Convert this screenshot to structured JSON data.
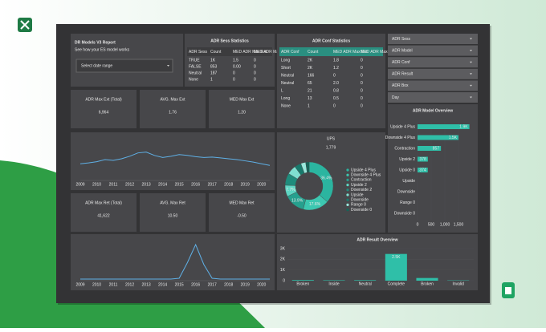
{
  "header": {
    "title": "DR Models V3 Report",
    "subtitle": "See how your ES model works",
    "date_range": "Select date range"
  },
  "sess_table": {
    "title": "ADR Sess Statistics",
    "columns": [
      "ADR Sess",
      "Count",
      "MED ADR Max Ext",
      "MED ADR Max Ret"
    ],
    "rows": [
      [
        "TRUE",
        "1K",
        "1.5",
        "0"
      ],
      [
        "FALSE",
        "853",
        "0.00",
        "0"
      ],
      [
        "Neutral",
        "187",
        "0",
        "0"
      ],
      [
        "None",
        "1",
        "0",
        "0"
      ]
    ]
  },
  "conf_table": {
    "title": "ADR Conf Statistics",
    "columns": [
      "ADR Conf",
      "Count",
      "MED ADR Max Ext",
      "MED ADR Max Ret"
    ],
    "rows": [
      [
        "Long",
        "2K",
        "1.8",
        "0"
      ],
      [
        "Short",
        "2K",
        "1.2",
        "0"
      ],
      [
        "Neutral",
        "166",
        "0",
        "0"
      ],
      [
        "Neutral",
        "65",
        "2.0",
        "0"
      ],
      [
        "L",
        "21",
        "0.8",
        "0"
      ],
      [
        "Long",
        "13",
        "0.5",
        "0"
      ],
      [
        "None",
        "1",
        "0",
        "0"
      ]
    ]
  },
  "filters": [
    "ADR Sess",
    "ADR Model",
    "ADR Conf",
    "ADR Result",
    "ADR Box",
    "Day"
  ],
  "cards": [
    {
      "label": "ADR Max Ext (Total)",
      "value": "6,964",
      "color": "#5fcfbd"
    },
    {
      "label": "AVG. Max Ext",
      "value": "1.76",
      "color": "#5fcfbd"
    },
    {
      "label": "MED Max Ext",
      "value": "1.20",
      "color": "#5fcfbd"
    },
    {
      "label": "ADR Max Ret (Total)",
      "value": "41,622",
      "color": "#5fcfbd"
    },
    {
      "label": "AVG. Max Ret",
      "value": "10.50",
      "color": "#5fcfbd"
    },
    {
      "label": "MED Max Ret",
      "value": "-0.50",
      "color": "#ef4b4b"
    }
  ],
  "line_charts": [
    {
      "type": "line",
      "color": "#5fb0e6",
      "ylim": [
        0,
        100
      ],
      "categories": [
        "2009",
        null,
        "2010",
        null,
        "2011",
        null,
        "2012",
        null,
        "2013",
        null,
        "2014",
        null,
        "2015",
        null,
        "2016",
        null,
        "2017",
        null,
        "2018",
        null,
        "2019",
        null,
        "2020",
        null
      ],
      "values": [
        40,
        42,
        45,
        50,
        48,
        52,
        58,
        66,
        68,
        60,
        55,
        58,
        62,
        60,
        57,
        55,
        56,
        54,
        52,
        50,
        47,
        44,
        40,
        36
      ]
    },
    {
      "type": "line",
      "color": "#5fb0e6",
      "ylim": [
        0,
        100
      ],
      "categories": [
        "2009",
        null,
        "2010",
        null,
        "2011",
        null,
        "2012",
        null,
        "2013",
        null,
        "2014",
        null,
        "2015",
        null,
        "2016",
        null,
        "2017",
        null,
        "2018",
        null,
        "2019",
        null,
        "2020",
        null
      ],
      "values": [
        4,
        4,
        4,
        4,
        4,
        4,
        4,
        4,
        4,
        4,
        4,
        4,
        6,
        45,
        90,
        40,
        6,
        4,
        4,
        4,
        4,
        4,
        4,
        4
      ]
    }
  ],
  "donut": {
    "type": "pie",
    "title": "UPS",
    "total": "1,779",
    "categories": [
      "Upside 4 Plus",
      "Downside 4 Plus",
      "Contraction",
      "Upside 2",
      "Downside 2",
      "Upside",
      "Downside",
      "Range 0",
      "Downside 0"
    ],
    "values": [
      36.4,
      17.6,
      13.9,
      7.7,
      8.1,
      6.2,
      4.5,
      3.3,
      2.3
    ],
    "value_labels": [
      "36.4%",
      "17.6%",
      "13.9%",
      "7.7%",
      null,
      null,
      null,
      null,
      null
    ],
    "colors": [
      "#2bb5a0",
      "#3cc7b0",
      "#26a08e",
      "#5ed6c3",
      "#1f8c7c",
      "#7fe0d1",
      "#187a6c",
      "#9ae8dc",
      "#136659"
    ]
  },
  "model_overview": {
    "type": "bar",
    "title": "ADR Model Overview",
    "color": "#2fbfa8",
    "categories": [
      "Upside 4 Plus",
      "Downside 4 Plus",
      "Contraction",
      "Upside 2",
      "Upside 0",
      "Upside",
      "Downside",
      "Range 0",
      "Downside 0"
    ],
    "values": [
      1900,
      1500,
      857,
      378,
      374,
      0,
      0,
      0,
      0
    ],
    "value_labels": [
      "1.9K",
      "1.5K",
      "857",
      "378",
      "374",
      null,
      null,
      null,
      null
    ],
    "xlim": [
      0,
      2000
    ],
    "xticks": [
      0,
      500,
      {
        "value": 1000,
        "label": "1,000"
      },
      {
        "value": 1500,
        "label": "1,500"
      }
    ]
  },
  "result_overview": {
    "type": "bar",
    "title": "ADR Result Overview",
    "color": "#2fbfa8",
    "categories": [
      "Broken",
      "Inside",
      "Neutral",
      "Complete",
      "Broken",
      "Invalid"
    ],
    "values": [
      60,
      40,
      50,
      2500,
      250,
      30
    ],
    "value_labels": [
      null,
      null,
      null,
      "2.5K",
      null,
      null
    ],
    "ylim": [
      0,
      3000
    ],
    "yticks": [
      0,
      {
        "value": 1000,
        "label": "1K"
      },
      {
        "value": 2000,
        "label": "2K"
      },
      {
        "value": 3000,
        "label": "3K"
      }
    ]
  }
}
